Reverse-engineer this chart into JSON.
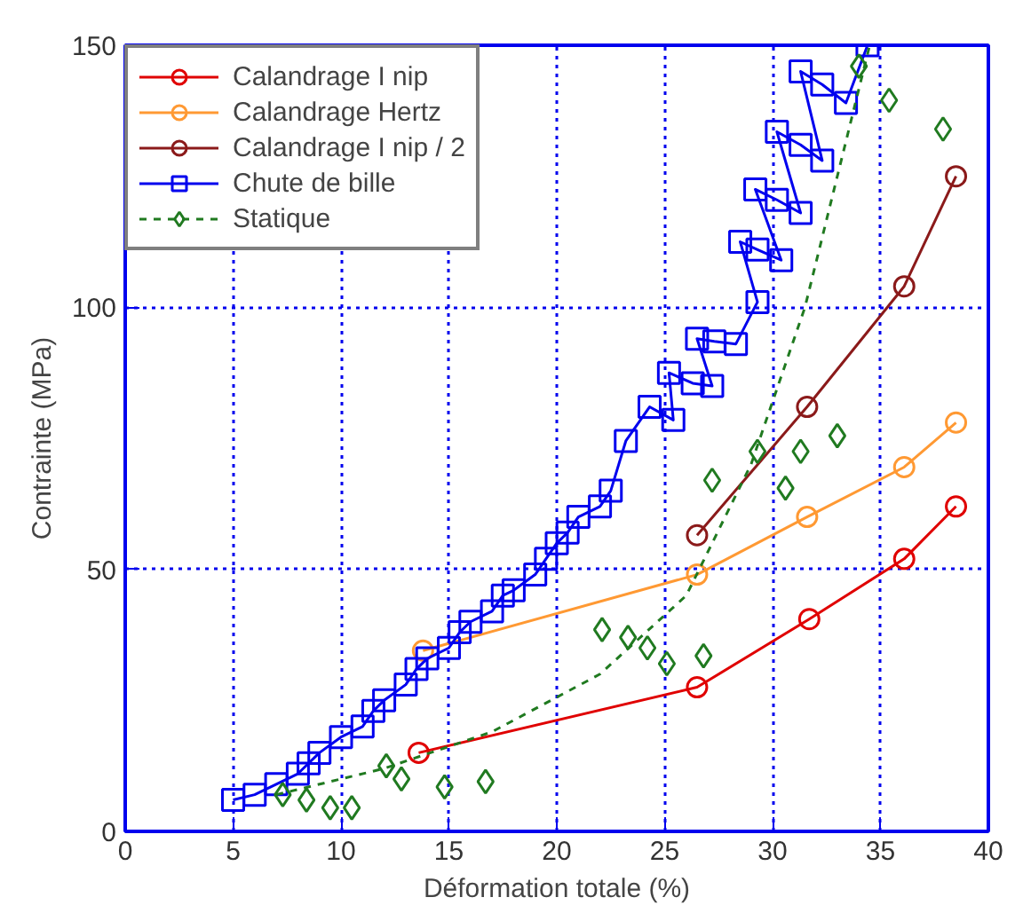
{
  "chart_data": {
    "type": "line",
    "xlabel": "Déformation totale (%)",
    "ylabel": "Contrainte (MPa)",
    "xlim": [
      0,
      40
    ],
    "ylim": [
      0,
      150
    ],
    "xticks": [
      0,
      5,
      10,
      15,
      20,
      25,
      30,
      35,
      40
    ],
    "yticks": [
      0,
      50,
      100,
      150
    ],
    "grid": true,
    "legend": "top left",
    "series": [
      {
        "name": "Calandrage I nip",
        "color": "#e00000",
        "marker": "circle",
        "line_style": "solid",
        "x": [
          13.6,
          26.5,
          31.7,
          36.1,
          38.5
        ],
        "values": [
          15,
          27.5,
          40.5,
          52,
          62
        ]
      },
      {
        "name": "Calandrage Hertz",
        "color": "#ff9933",
        "marker": "circle",
        "line_style": "solid",
        "x": [
          13.8,
          26.5,
          31.6,
          36.1,
          38.5
        ],
        "values": [
          34.5,
          49,
          60,
          69.5,
          78
        ]
      },
      {
        "name": "Calandrage I nip / 2",
        "color": "#8b1a1a",
        "marker": "circle",
        "line_style": "solid",
        "x": [
          26.5,
          31.6,
          36.1,
          38.5
        ],
        "values": [
          56.5,
          81,
          104,
          125
        ]
      },
      {
        "name": "Chute de bille",
        "color": "#0000ee",
        "marker": "square",
        "line_style": "solid",
        "x": [
          5,
          6,
          7,
          8,
          8.5,
          9,
          10,
          11,
          11.5,
          12,
          13,
          13.5,
          14,
          15,
          15.5,
          16,
          17,
          17.5,
          18,
          19,
          19.5,
          20,
          20.5,
          21,
          22,
          22.5,
          23.2,
          24.3,
          25.4,
          25.2,
          26.3,
          27.2,
          26.5,
          27.3,
          28.3,
          29.3,
          28.5,
          29.3,
          30.4,
          29.2,
          30.2,
          31.3,
          30.2,
          31.3,
          32.3,
          31.3,
          32.3,
          33.4,
          34.4
        ],
        "values": [
          6,
          7,
          9,
          11,
          13,
          15,
          18,
          20,
          23,
          25,
          28,
          31,
          33,
          35,
          38,
          40,
          42,
          45,
          46,
          49,
          52,
          55,
          57,
          60,
          62,
          65,
          74.5,
          81,
          78.5,
          87.5,
          85.5,
          85,
          94,
          93.5,
          93,
          101,
          112.5,
          111,
          109,
          122.5,
          120.5,
          118,
          133.5,
          131,
          128,
          145,
          142.5,
          139,
          150
        ]
      },
      {
        "name": "Statique",
        "color": "#207a20",
        "type": "scatter",
        "marker": "diamond",
        "x": [
          7.3,
          8.4,
          9.5,
          10.5,
          12.1,
          12.8,
          14.8,
          16.7,
          22.1,
          23.3,
          24.2,
          25.1,
          26.8,
          27.2,
          29.3,
          30.6,
          31.3,
          33,
          34,
          35.4,
          37.9
        ],
        "values": [
          7,
          6,
          4.5,
          4.5,
          12.5,
          10,
          8.5,
          9.5,
          38.5,
          37,
          35,
          32,
          33.5,
          67,
          72.5,
          65.5,
          72.5,
          75.5,
          146,
          139.5,
          134
        ]
      },
      {
        "color": "#207a20",
        "marker": "none",
        "line_style": "dashed",
        "x": [
          7,
          12,
          17,
          22,
          26,
          29,
          31.5,
          33,
          34.5
        ],
        "values": [
          7,
          12,
          19,
          30,
          45,
          70,
          100,
          125,
          150
        ]
      }
    ]
  }
}
